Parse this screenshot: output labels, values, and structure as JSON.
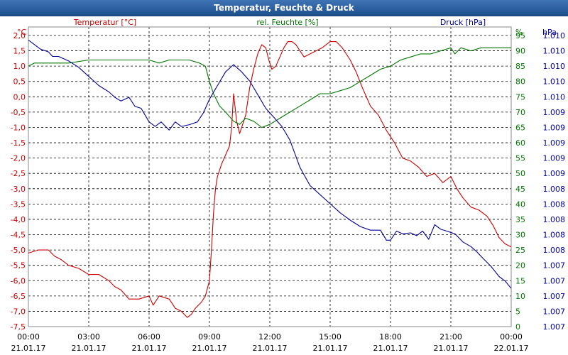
{
  "window": {
    "title": "Temperatur, Feuchte & Druck"
  },
  "chart_data": {
    "type": "line",
    "title": "Temperatur, Feuchte & Druck",
    "x_ticks": [
      {
        "time": "00:00",
        "date": "21.01.17"
      },
      {
        "time": "03:00",
        "date": "21.01.17"
      },
      {
        "time": "06:00",
        "date": "21.01.17"
      },
      {
        "time": "09:00",
        "date": "21.01.17"
      },
      {
        "time": "12:00",
        "date": "21.01.17"
      },
      {
        "time": "15:00",
        "date": "21.01.17"
      },
      {
        "time": "18:00",
        "date": "21.01.17"
      },
      {
        "time": "21:00",
        "date": "21.01.17"
      },
      {
        "time": "00:00",
        "date": "22.01.17"
      }
    ],
    "x_range_hours": [
      0,
      24
    ],
    "left_axis": {
      "unit": "°C",
      "label": "Temperatur [°C]",
      "range": [
        -7.5,
        2.0
      ],
      "ticks": [
        "2,0",
        "1,5",
        "1,0",
        "0,5",
        "0,0",
        "-0,5",
        "-1,0",
        "-1,5",
        "-2,0",
        "-2,5",
        "-3,0",
        "-3,5",
        "-4,0",
        "-4,5",
        "-5,0",
        "-5,5",
        "-6,0",
        "-6,5",
        "-7,0",
        "-7,5"
      ]
    },
    "mid_axis": {
      "unit": "%",
      "label": "rel. Feuchte [%]",
      "range": [
        0,
        95
      ],
      "ticks": [
        "95",
        "90",
        "85",
        "80",
        "75",
        "70",
        "65",
        "60",
        "55",
        "50",
        "45",
        "40",
        "35",
        "30",
        "25",
        "20",
        "15",
        "10",
        "5",
        "0"
      ]
    },
    "right_axis": {
      "unit": "hPa",
      "label": "Druck [hPa]",
      "range": [
        1006.8,
        1010.0
      ],
      "ticks": [
        "1.010",
        "1.010",
        "1.010",
        "1.010",
        "1.010",
        "1.009",
        "1.009",
        "1.009",
        "1.009",
        "1.009",
        "1.008",
        "1.008",
        "1.008",
        "1.008",
        "1.008",
        "1.007",
        "1.007",
        "1.007",
        "1.007",
        "1.007"
      ]
    },
    "series": [
      {
        "name": "Temperatur [°C]",
        "axis": "left",
        "color": "#cc0000",
        "points": [
          [
            0,
            -5.1
          ],
          [
            0.5,
            -5.0
          ],
          [
            1,
            -5.0
          ],
          [
            1.3,
            -5.2
          ],
          [
            1.6,
            -5.3
          ],
          [
            2,
            -5.5
          ],
          [
            2.5,
            -5.6
          ],
          [
            3,
            -5.8
          ],
          [
            3.5,
            -5.8
          ],
          [
            4,
            -6.0
          ],
          [
            4.3,
            -6.2
          ],
          [
            4.6,
            -6.3
          ],
          [
            5,
            -6.6
          ],
          [
            5.5,
            -6.6
          ],
          [
            6,
            -6.5
          ],
          [
            6.2,
            -6.8
          ],
          [
            6.5,
            -6.5
          ],
          [
            7,
            -6.6
          ],
          [
            7.3,
            -6.9
          ],
          [
            7.6,
            -7.0
          ],
          [
            7.9,
            -7.2
          ],
          [
            8.1,
            -7.1
          ],
          [
            8.3,
            -6.9
          ],
          [
            8.6,
            -6.7
          ],
          [
            8.8,
            -6.5
          ],
          [
            9,
            -6.0
          ],
          [
            9.1,
            -5.0
          ],
          [
            9.2,
            -3.8
          ],
          [
            9.3,
            -3.0
          ],
          [
            9.4,
            -2.6
          ],
          [
            9.5,
            -2.4
          ],
          [
            9.6,
            -2.2
          ],
          [
            9.8,
            -1.9
          ],
          [
            10,
            -1.6
          ],
          [
            10.1,
            -1.0
          ],
          [
            10.2,
            0.1
          ],
          [
            10.35,
            -0.8
          ],
          [
            10.5,
            -1.2
          ],
          [
            10.65,
            -0.9
          ],
          [
            10.8,
            -0.6
          ],
          [
            11,
            0.3
          ],
          [
            11.2,
            0.9
          ],
          [
            11.4,
            1.4
          ],
          [
            11.6,
            1.7
          ],
          [
            11.8,
            1.6
          ],
          [
            11.95,
            1.2
          ],
          [
            12.1,
            0.9
          ],
          [
            12.3,
            1.0
          ],
          [
            12.5,
            1.3
          ],
          [
            12.7,
            1.6
          ],
          [
            12.9,
            1.8
          ],
          [
            13.1,
            1.8
          ],
          [
            13.3,
            1.7
          ],
          [
            13.5,
            1.5
          ],
          [
            13.7,
            1.3
          ],
          [
            14,
            1.4
          ],
          [
            14.3,
            1.5
          ],
          [
            14.6,
            1.6
          ],
          [
            15,
            1.8
          ],
          [
            15.3,
            1.8
          ],
          [
            15.6,
            1.6
          ],
          [
            16,
            1.2
          ],
          [
            16.3,
            0.8
          ],
          [
            16.6,
            0.3
          ],
          [
            17,
            -0.3
          ],
          [
            17.4,
            -0.6
          ],
          [
            17.8,
            -1.1
          ],
          [
            18.2,
            -1.5
          ],
          [
            18.6,
            -2.0
          ],
          [
            19,
            -2.1
          ],
          [
            19.4,
            -2.3
          ],
          [
            19.8,
            -2.6
          ],
          [
            20.2,
            -2.5
          ],
          [
            20.6,
            -2.8
          ],
          [
            21,
            -2.6
          ],
          [
            21.3,
            -3.0
          ],
          [
            21.6,
            -3.3
          ],
          [
            22,
            -3.6
          ],
          [
            22.4,
            -3.7
          ],
          [
            22.8,
            -3.9
          ],
          [
            23.1,
            -4.2
          ],
          [
            23.4,
            -4.6
          ],
          [
            23.7,
            -4.8
          ],
          [
            24,
            -4.9
          ]
        ]
      },
      {
        "name": "rel. Feuchte [%]",
        "axis": "mid",
        "color": "#007700",
        "points": [
          [
            0,
            85
          ],
          [
            0.3,
            86
          ],
          [
            1,
            86
          ],
          [
            2,
            86
          ],
          [
            3,
            87
          ],
          [
            4,
            87
          ],
          [
            5,
            87
          ],
          [
            6,
            87
          ],
          [
            6.5,
            86
          ],
          [
            7,
            87
          ],
          [
            7.5,
            87
          ],
          [
            8,
            87
          ],
          [
            8.5,
            86
          ],
          [
            8.8,
            85
          ],
          [
            9,
            80
          ],
          [
            9.2,
            76
          ],
          [
            9.5,
            72
          ],
          [
            9.8,
            70
          ],
          [
            10.2,
            67
          ],
          [
            10.5,
            66
          ],
          [
            10.8,
            68
          ],
          [
            11.2,
            67
          ],
          [
            11.6,
            65
          ],
          [
            12,
            66
          ],
          [
            12.5,
            68
          ],
          [
            13,
            70
          ],
          [
            13.5,
            72
          ],
          [
            14,
            74
          ],
          [
            14.5,
            76
          ],
          [
            15,
            76
          ],
          [
            15.5,
            77
          ],
          [
            16,
            78
          ],
          [
            16.5,
            80
          ],
          [
            17,
            82
          ],
          [
            17.5,
            84
          ],
          [
            18,
            85
          ],
          [
            18.5,
            87
          ],
          [
            19,
            88
          ],
          [
            19.5,
            89
          ],
          [
            20,
            89
          ],
          [
            20.5,
            90
          ],
          [
            21,
            91
          ],
          [
            21.2,
            89
          ],
          [
            21.5,
            91
          ],
          [
            22,
            90
          ],
          [
            22.5,
            91
          ],
          [
            23,
            91
          ],
          [
            23.5,
            91
          ],
          [
            24,
            91
          ]
        ]
      },
      {
        "name": "Druck [hPa]",
        "axis": "right",
        "color": "#000099",
        "points": [
          [
            0,
            1009.95
          ],
          [
            0.3,
            1009.9
          ],
          [
            0.6,
            1009.85
          ],
          [
            1,
            1009.82
          ],
          [
            1.2,
            1009.77
          ],
          [
            1.5,
            1009.77
          ],
          [
            2,
            1009.72
          ],
          [
            2.5,
            1009.65
          ],
          [
            3,
            1009.55
          ],
          [
            3.5,
            1009.45
          ],
          [
            4,
            1009.38
          ],
          [
            4.3,
            1009.32
          ],
          [
            4.6,
            1009.28
          ],
          [
            5,
            1009.32
          ],
          [
            5.3,
            1009.22
          ],
          [
            5.6,
            1009.2
          ],
          [
            6,
            1009.05
          ],
          [
            6.3,
            1009.0
          ],
          [
            6.6,
            1009.05
          ],
          [
            7,
            1008.96
          ],
          [
            7.3,
            1009.05
          ],
          [
            7.6,
            1009.0
          ],
          [
            8,
            1009.02
          ],
          [
            8.4,
            1009.05
          ],
          [
            8.7,
            1009.15
          ],
          [
            9,
            1009.3
          ],
          [
            9.4,
            1009.45
          ],
          [
            9.8,
            1009.6
          ],
          [
            10.2,
            1009.68
          ],
          [
            10.6,
            1009.6
          ],
          [
            11,
            1009.5
          ],
          [
            11.4,
            1009.35
          ],
          [
            11.8,
            1009.2
          ],
          [
            12.2,
            1009.1
          ],
          [
            12.6,
            1009.0
          ],
          [
            13,
            1008.85
          ],
          [
            13.5,
            1008.55
          ],
          [
            14,
            1008.35
          ],
          [
            14.5,
            1008.25
          ],
          [
            15,
            1008.15
          ],
          [
            15.5,
            1008.05
          ],
          [
            16,
            1007.97
          ],
          [
            16.5,
            1007.9
          ],
          [
            17,
            1007.86
          ],
          [
            17.5,
            1007.86
          ],
          [
            17.8,
            1007.75
          ],
          [
            18,
            1007.75
          ],
          [
            18.3,
            1007.85
          ],
          [
            18.6,
            1007.82
          ],
          [
            19,
            1007.83
          ],
          [
            19.3,
            1007.8
          ],
          [
            19.6,
            1007.85
          ],
          [
            19.9,
            1007.76
          ],
          [
            20.2,
            1007.92
          ],
          [
            20.5,
            1007.87
          ],
          [
            20.8,
            1007.85
          ],
          [
            21.2,
            1007.82
          ],
          [
            21.6,
            1007.73
          ],
          [
            22,
            1007.68
          ],
          [
            22.3,
            1007.62
          ],
          [
            22.6,
            1007.55
          ],
          [
            23,
            1007.46
          ],
          [
            23.4,
            1007.35
          ],
          [
            23.7,
            1007.3
          ],
          [
            24,
            1007.22
          ]
        ]
      }
    ]
  }
}
